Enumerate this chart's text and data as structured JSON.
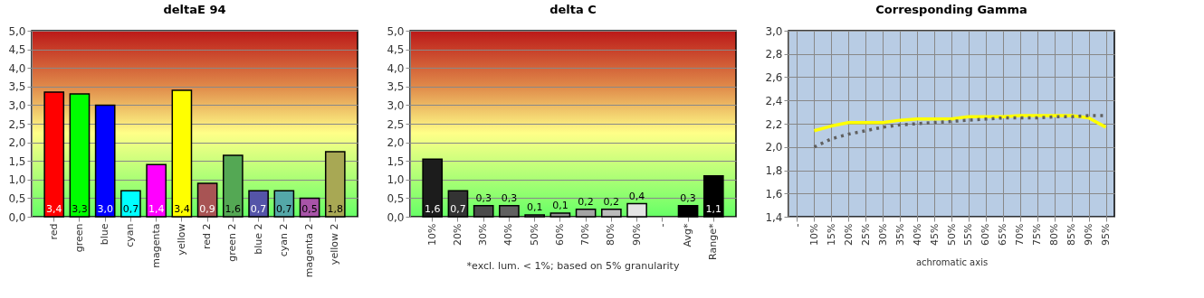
{
  "chart_data": [
    {
      "type": "bar",
      "title": "deltaE 94",
      "categories": [
        "red",
        "green",
        "blue",
        "cyan",
        "magenta",
        "yellow",
        "red 2",
        "green 2",
        "blue 2",
        "cyan 2",
        "magenta 2",
        "yellow 2"
      ],
      "values": [
        3.35,
        3.3,
        3.0,
        0.7,
        1.4,
        3.4,
        0.9,
        1.65,
        0.7,
        0.7,
        0.5,
        1.75
      ],
      "colors": [
        "#ff0000",
        "#00ff00",
        "#0000ff",
        "#00ffff",
        "#ff00ff",
        "#ffff00",
        "#a85454",
        "#54a854",
        "#5454a8",
        "#54a8a8",
        "#a854a8",
        "#a8a854"
      ],
      "value_labels": [
        "3,4",
        "3,3",
        "3,0",
        "0,7",
        "1,4",
        "3,4",
        "0,9",
        "1,6",
        "0,7",
        "0,7",
        "0,5",
        "1,8"
      ],
      "ylim": [
        0,
        5
      ],
      "yticks": [
        {
          "value": 0,
          "label": "0,0"
        },
        {
          "value": 0.5,
          "label": "0,5"
        },
        {
          "value": 1,
          "label": "1,0"
        },
        {
          "value": 1.5,
          "label": "1,5"
        },
        {
          "value": 2,
          "label": "2,0"
        },
        {
          "value": 2.5,
          "label": "2,5"
        },
        {
          "value": 3,
          "label": "3,0"
        },
        {
          "value": 3.5,
          "label": "3,5"
        },
        {
          "value": 4,
          "label": "4,0"
        },
        {
          "value": 4.5,
          "label": "4,5"
        },
        {
          "value": 5,
          "label": "5,0"
        }
      ],
      "grid": "y"
    },
    {
      "type": "bar",
      "title": "delta C",
      "categories": [
        "10%",
        "20%",
        "30%",
        "40%",
        "50%",
        "60%",
        "70%",
        "80%",
        "90%",
        "-",
        "Avg*",
        "Range*"
      ],
      "values": [
        1.55,
        0.7,
        0.3,
        0.3,
        0.05,
        0.1,
        0.2,
        0.2,
        0.35,
        null,
        0.3,
        1.1
      ],
      "colors": [
        "#1c1c1c",
        "#333333",
        "#4a4a4a",
        "#606060",
        "#777777",
        "#8d8d8d",
        "#a4a4a4",
        "#bbbbbb",
        "#e4e4e4",
        "#000000",
        "#000000",
        "#000000"
      ],
      "value_labels": [
        "1,6",
        "0,7",
        "0,3",
        "0,3",
        "0,1",
        "0,1",
        "0,2",
        "0,2",
        "0,4",
        null,
        "0,3",
        "1,1"
      ],
      "annotations": [
        "*excl. lum. < 1%; based on 5% granularity"
      ],
      "ylim": [
        0,
        5
      ],
      "yticks": [
        {
          "value": 0,
          "label": "0,0"
        },
        {
          "value": 0.5,
          "label": "0,5"
        },
        {
          "value": 1,
          "label": "1,0"
        },
        {
          "value": 1.5,
          "label": "1,5"
        },
        {
          "value": 2,
          "label": "2,0"
        },
        {
          "value": 2.5,
          "label": "2,5"
        },
        {
          "value": 3,
          "label": "3,0"
        },
        {
          "value": 3.5,
          "label": "3,5"
        },
        {
          "value": 4,
          "label": "4,0"
        },
        {
          "value": 4.5,
          "label": "4,5"
        },
        {
          "value": 5,
          "label": "5,0"
        }
      ],
      "grid": "y"
    },
    {
      "type": "line",
      "title": "Corresponding Gamma",
      "xlabel": "achromatic axis",
      "categories": [
        "-",
        "10%",
        "15%",
        "20%",
        "25%",
        "30%",
        "35%",
        "40%",
        "45%",
        "50%",
        "55%",
        "60%",
        "65%",
        "70%",
        "75%",
        "80%",
        "85%",
        "90%",
        "95%"
      ],
      "series": [
        {
          "color": "#ffff00",
          "line_style": "solid",
          "values": [
            null,
            2.14,
            2.18,
            2.21,
            2.21,
            2.21,
            2.23,
            2.24,
            2.24,
            2.24,
            2.26,
            2.26,
            2.26,
            2.27,
            2.27,
            2.27,
            2.27,
            2.25,
            2.17
          ]
        },
        {
          "color": "#606060",
          "line_style": "dotted",
          "values": [
            null,
            2.0,
            2.07,
            2.11,
            2.14,
            2.17,
            2.19,
            2.2,
            2.21,
            2.22,
            2.23,
            2.24,
            2.25,
            2.25,
            2.25,
            2.26,
            2.26,
            2.27,
            2.27
          ]
        }
      ],
      "ylim": [
        1.4,
        3.0
      ],
      "yticks": [
        {
          "value": 1.4,
          "label": "1,4"
        },
        {
          "value": 1.6,
          "label": "1,6"
        },
        {
          "value": 1.8,
          "label": "1,8"
        },
        {
          "value": 2.0,
          "label": "2,0"
        },
        {
          "value": 2.2,
          "label": "2,2"
        },
        {
          "value": 2.4,
          "label": "2,4"
        },
        {
          "value": 2.6,
          "label": "2,6"
        },
        {
          "value": 2.8,
          "label": "2,8"
        },
        {
          "value": 3.0,
          "label": "3,0"
        }
      ],
      "grid": true,
      "marker": "none"
    }
  ]
}
